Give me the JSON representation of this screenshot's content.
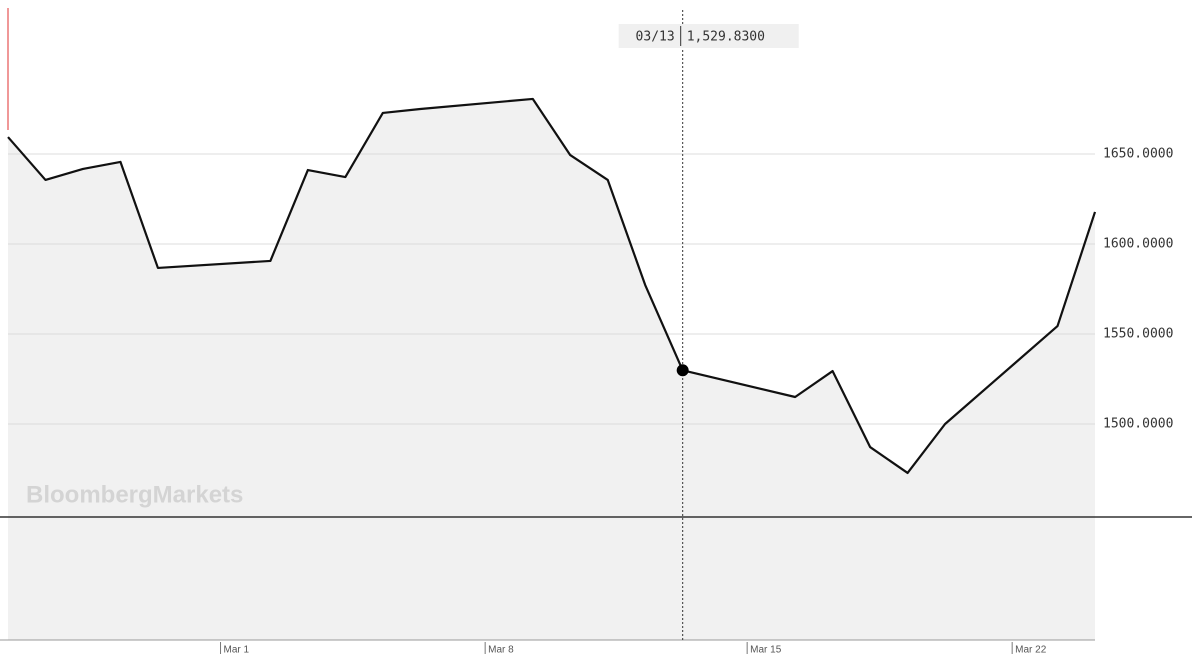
{
  "chart_data": {
    "type": "line",
    "watermark": "BloombergMarkets",
    "x": [
      -6,
      -5,
      -4,
      -3,
      -2,
      1,
      2,
      3,
      4,
      5,
      8,
      9,
      10,
      11,
      12,
      15,
      16,
      17,
      18,
      19,
      22,
      23
    ],
    "series": [
      {
        "color": "#111111",
        "fill": "#f1f1f1",
        "values": [
          1659.4,
          1635.6,
          1641.7,
          1645.6,
          1586.7,
          1590.6,
          1641.1,
          1637.2,
          1672.8,
          1675,
          1680.6,
          1649.4,
          1635.6,
          1577.2,
          1529.83,
          1515,
          1529.4,
          1487.2,
          1472.8,
          1500,
          1554.4,
          1617.8
        ]
      }
    ],
    "reference_line": 1448.3,
    "tooltip": {
      "date": "03/13",
      "value": "1,529.8300"
    },
    "xlim": [
      -6,
      23
    ],
    "xticks": [
      {
        "value": -0.33,
        "label": "Mar 1"
      },
      {
        "value": 6.73,
        "label": "Mar 8"
      },
      {
        "value": 13.72,
        "label": "Mar 15"
      },
      {
        "value": 20.79,
        "label": "Mar 22"
      }
    ],
    "ylim": [
      1380,
      1730
    ],
    "yticks": [
      {
        "value": 1500,
        "label": "1500.0000"
      },
      {
        "value": 1550,
        "label": "1550.0000"
      },
      {
        "value": 1600,
        "label": "1600.0000"
      },
      {
        "value": 1650,
        "label": "1650.0000"
      }
    ],
    "grid": true
  }
}
